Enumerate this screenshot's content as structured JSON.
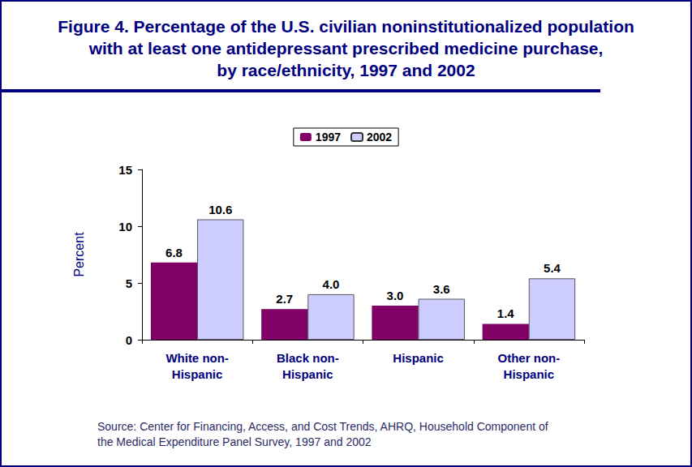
{
  "chart_data": {
    "type": "bar",
    "title": "Figure 4. Percentage of the U.S. civilian noninstitutionalized population\nwith at least one antidepressant prescribed medicine purchase,\nby race/ethnicity, 1997 and 2002",
    "categories": [
      "White non-\nHispanic",
      "Black non-\nHispanic",
      "Hispanic",
      "Other non-\nHispanic"
    ],
    "series": [
      {
        "name": "1997",
        "color": "#800066",
        "values": [
          6.8,
          2.7,
          3.0,
          1.4
        ],
        "value_labels": [
          "6.8",
          "2.7",
          "3.0",
          "1.4"
        ]
      },
      {
        "name": "2002",
        "color": "#ccccff",
        "values": [
          10.6,
          4.0,
          3.6,
          5.4
        ],
        "value_labels": [
          "10.6",
          "4.0",
          "3.6",
          "5.4"
        ]
      }
    ],
    "y_label": "Percent",
    "ylim": [
      0,
      15
    ],
    "yticks": [
      0,
      5,
      10,
      15
    ],
    "grid": false,
    "legend": "top",
    "data_labels": true,
    "source": "Source: Center for Financing, Access, and Cost Trends, AHRQ, Household Component of\nthe Medical Expenditure Panel Survey, 1997 and 2002"
  }
}
